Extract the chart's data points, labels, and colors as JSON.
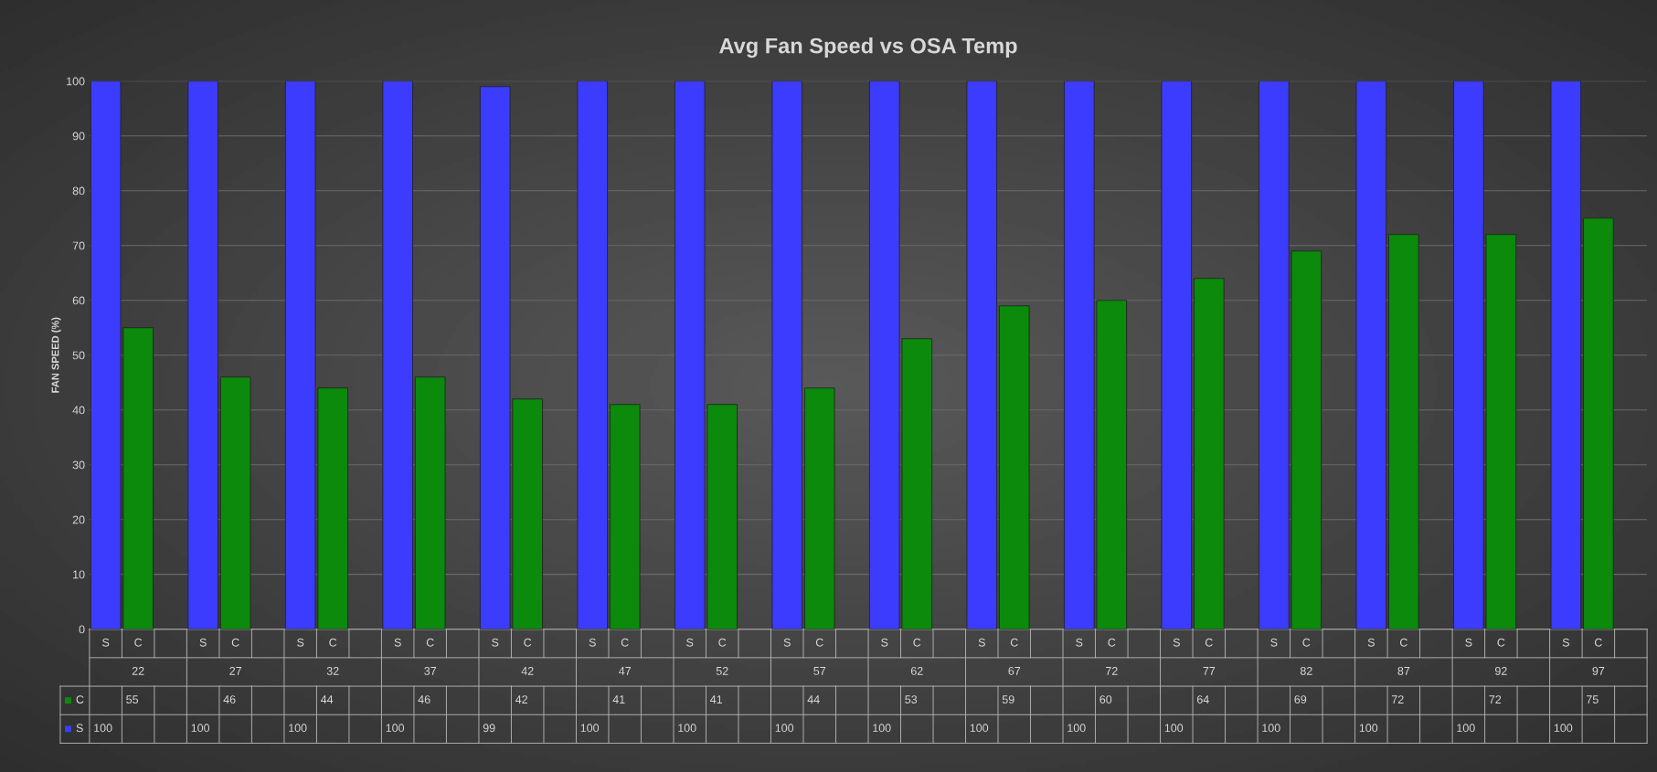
{
  "chart_data": {
    "type": "bar",
    "title": "Avg Fan Speed vs OSA Temp",
    "ylabel": "FAN SPEED (%)",
    "categories": [
      "22",
      "27",
      "32",
      "37",
      "42",
      "47",
      "52",
      "57",
      "62",
      "67",
      "72",
      "77",
      "82",
      "87",
      "92",
      "97"
    ],
    "series": [
      {
        "name": "S",
        "color": "#3c3cff",
        "values": [
          100,
          100,
          100,
          100,
          99,
          100,
          100,
          100,
          100,
          100,
          100,
          100,
          100,
          100,
          100,
          100
        ]
      },
      {
        "name": "C",
        "color": "#0b8a0b",
        "values": [
          55,
          46,
          44,
          46,
          42,
          41,
          41,
          44,
          53,
          59,
          60,
          64,
          69,
          72,
          72,
          75
        ]
      }
    ],
    "ylim": [
      0,
      100
    ],
    "yticks": [
      0,
      10,
      20,
      30,
      40,
      50,
      60,
      70,
      80,
      90,
      100
    ],
    "grid": "y",
    "data_labels": true,
    "legend": "bottom"
  }
}
